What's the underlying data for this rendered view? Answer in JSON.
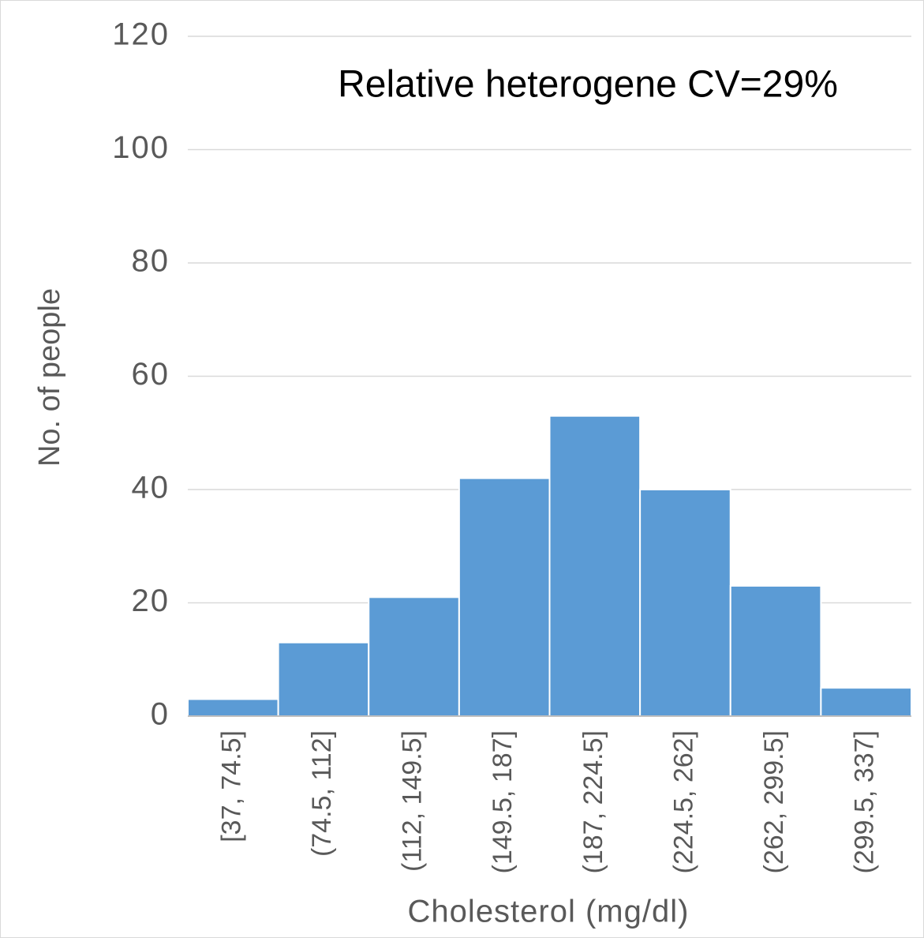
{
  "chart_data": {
    "type": "bar",
    "annotation": "Relative heterogene CV=29%",
    "x_label": "Cholesterol (mg/dl)",
    "y_label": "No. of people",
    "categories": [
      "[37, 74.5]",
      "(74.5, 112]",
      "(112, 149.5]",
      "(149.5, 187]",
      "(187, 224.5]",
      "(224.5, 262]",
      "(262, 299.5]",
      "(299.5, 337]"
    ],
    "values": [
      3,
      13,
      21,
      42,
      53,
      40,
      23,
      5
    ],
    "color": "#5b9bd5",
    "ylim": [
      0,
      120
    ],
    "yticks": [
      0,
      20,
      40,
      60,
      80,
      100,
      120
    ],
    "grid": true
  }
}
